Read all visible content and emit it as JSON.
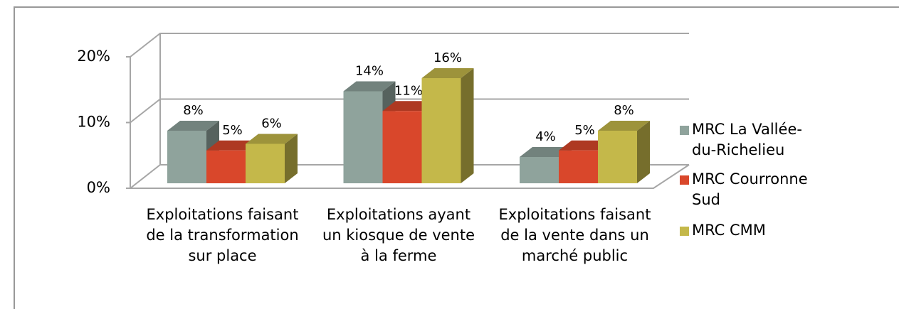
{
  "chart_data": {
    "type": "bar3d",
    "categories": [
      "Exploitations faisant de la transformation sur place",
      "Exploitations ayant un kiosque de vente à la ferme",
      "Exploitations faisant de la vente dans un marché public"
    ],
    "series": [
      {
        "name": "MRC La Vallée-du-Richelieu",
        "color": "#8fa39c",
        "values": [
          8,
          14,
          4
        ],
        "value_labels": [
          "8%",
          "14%",
          "4%"
        ]
      },
      {
        "name": "MRC Courronne Sud",
        "color": "#d9472b",
        "values": [
          5,
          11,
          5
        ],
        "value_labels": [
          "5%",
          "11%",
          "5%"
        ]
      },
      {
        "name": "MRC CMM",
        "color": "#c4b84a",
        "values": [
          6,
          16,
          8
        ],
        "value_labels": [
          "6%",
          "16%",
          "8%"
        ]
      }
    ],
    "ylim": [
      0,
      20
    ],
    "yticks": [
      {
        "value": 0,
        "label": "0%"
      },
      {
        "value": 10,
        "label": "10%"
      },
      {
        "value": 20,
        "label": "20%"
      }
    ],
    "grid": true,
    "legend": "right"
  }
}
